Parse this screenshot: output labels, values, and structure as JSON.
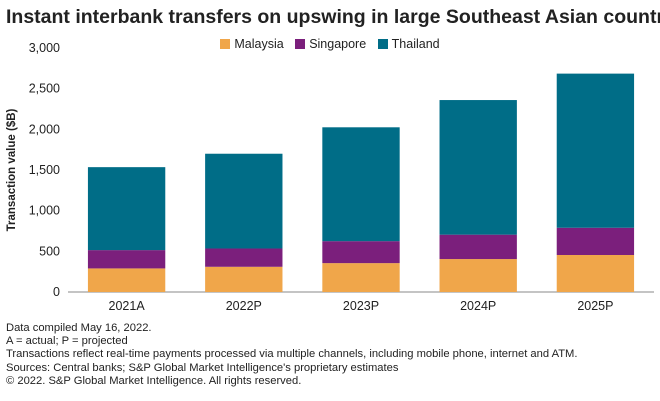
{
  "chart_data": {
    "type": "bar",
    "stacked": true,
    "title": "Instant interbank transfers on upswing in large Southeast Asian countries",
    "ylabel": "Transaction value ($B)",
    "xlabel": "",
    "ylim": [
      0,
      3000
    ],
    "yticks": [
      "0",
      "500",
      "1,000",
      "1,500",
      "2,000",
      "2,500",
      "3,000"
    ],
    "ytick_values": [
      0,
      500,
      1000,
      1500,
      2000,
      2500,
      3000
    ],
    "categories": [
      "2021A",
      "2022P",
      "2023P",
      "2024P",
      "2025P"
    ],
    "legend_position": "top-center",
    "grid": false,
    "series": [
      {
        "name": "Malaysia",
        "color": "#f0a64a",
        "values": [
          290,
          310,
          355,
          405,
          455
        ]
      },
      {
        "name": "Singapore",
        "color": "#7b1f7c",
        "values": [
          225,
          225,
          270,
          300,
          335
        ]
      },
      {
        "name": "Thailand",
        "color": "#006d87",
        "values": [
          1020,
          1165,
          1400,
          1655,
          1895
        ]
      }
    ]
  },
  "notes": [
    "Data compiled May 16, 2022.",
    "A = actual; P = projected",
    "Transactions reflect real-time payments processed via multiple channels, including mobile phone, internet and ATM.",
    "Sources: Central banks; S&P Global Market Intelligence's proprietary estimates",
    "© 2022. S&P Global Market Intelligence. All rights reserved."
  ]
}
